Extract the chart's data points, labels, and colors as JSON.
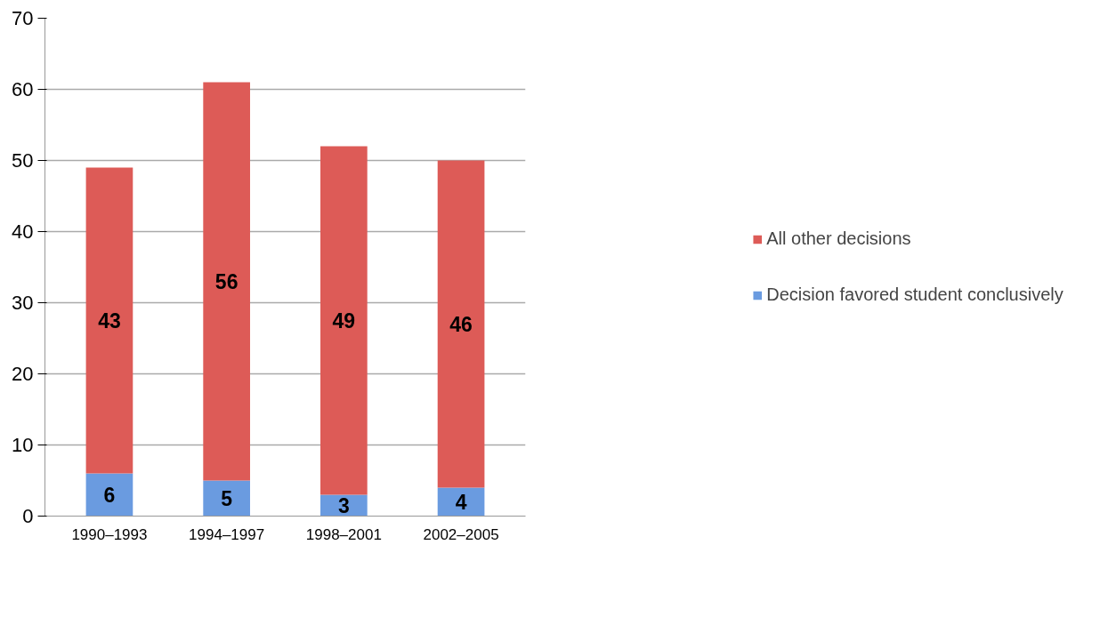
{
  "chart_data": {
    "type": "bar",
    "stacked": true,
    "categories": [
      "1990–1993",
      "1994–1997",
      "1998–2001",
      "2002–2005"
    ],
    "series": [
      {
        "name": "Decision favored student conclusively",
        "color": "#6a9be0",
        "values": [
          6,
          5,
          3,
          4
        ]
      },
      {
        "name": "All other decisions",
        "color": "#dd5b57",
        "values": [
          43,
          56,
          49,
          46
        ]
      }
    ],
    "ylim": [
      0,
      70
    ],
    "yticks": [
      0,
      10,
      20,
      30,
      40,
      50,
      60,
      70
    ],
    "grid": "y",
    "legend": "right",
    "data_labels": true
  }
}
